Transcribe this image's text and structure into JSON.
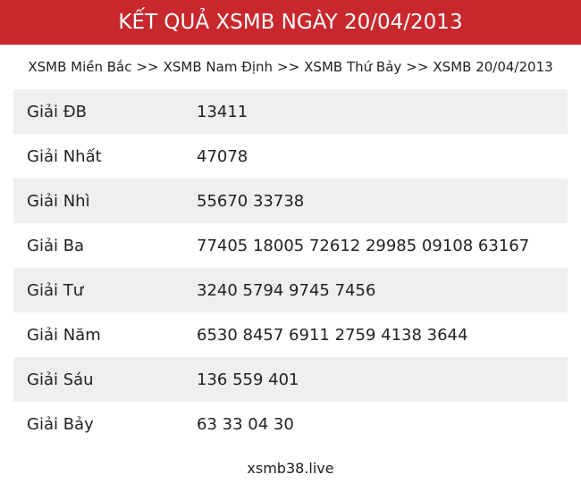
{
  "header": {
    "title": "KẾT QUẢ XSMB NGÀY 20/04/2013"
  },
  "breadcrumb": {
    "items": [
      "XSMB Miền Bắc",
      "XSMB Nam Định",
      "XSMB Thứ Bảy",
      "XSMB 20/04/2013"
    ],
    "separator": ">>"
  },
  "table": {
    "rows": [
      [
        "Giải ĐB",
        "13411"
      ],
      [
        "Giải Nhất",
        "47078"
      ],
      [
        "Giải Nhì",
        "55670 33738"
      ],
      [
        "Giải Ba",
        "77405 18005 72612 29985 09108 63167"
      ],
      [
        "Giải Tư",
        "3240 5794 9745 7456"
      ],
      [
        "Giải Năm",
        "6530 8457 6911 2759 4138 3644"
      ],
      [
        "Giải Sáu",
        "136 559 401"
      ],
      [
        "Giải Bảy",
        "63 33 04 30"
      ]
    ]
  },
  "footer": {
    "site": "xsmb38.live"
  }
}
